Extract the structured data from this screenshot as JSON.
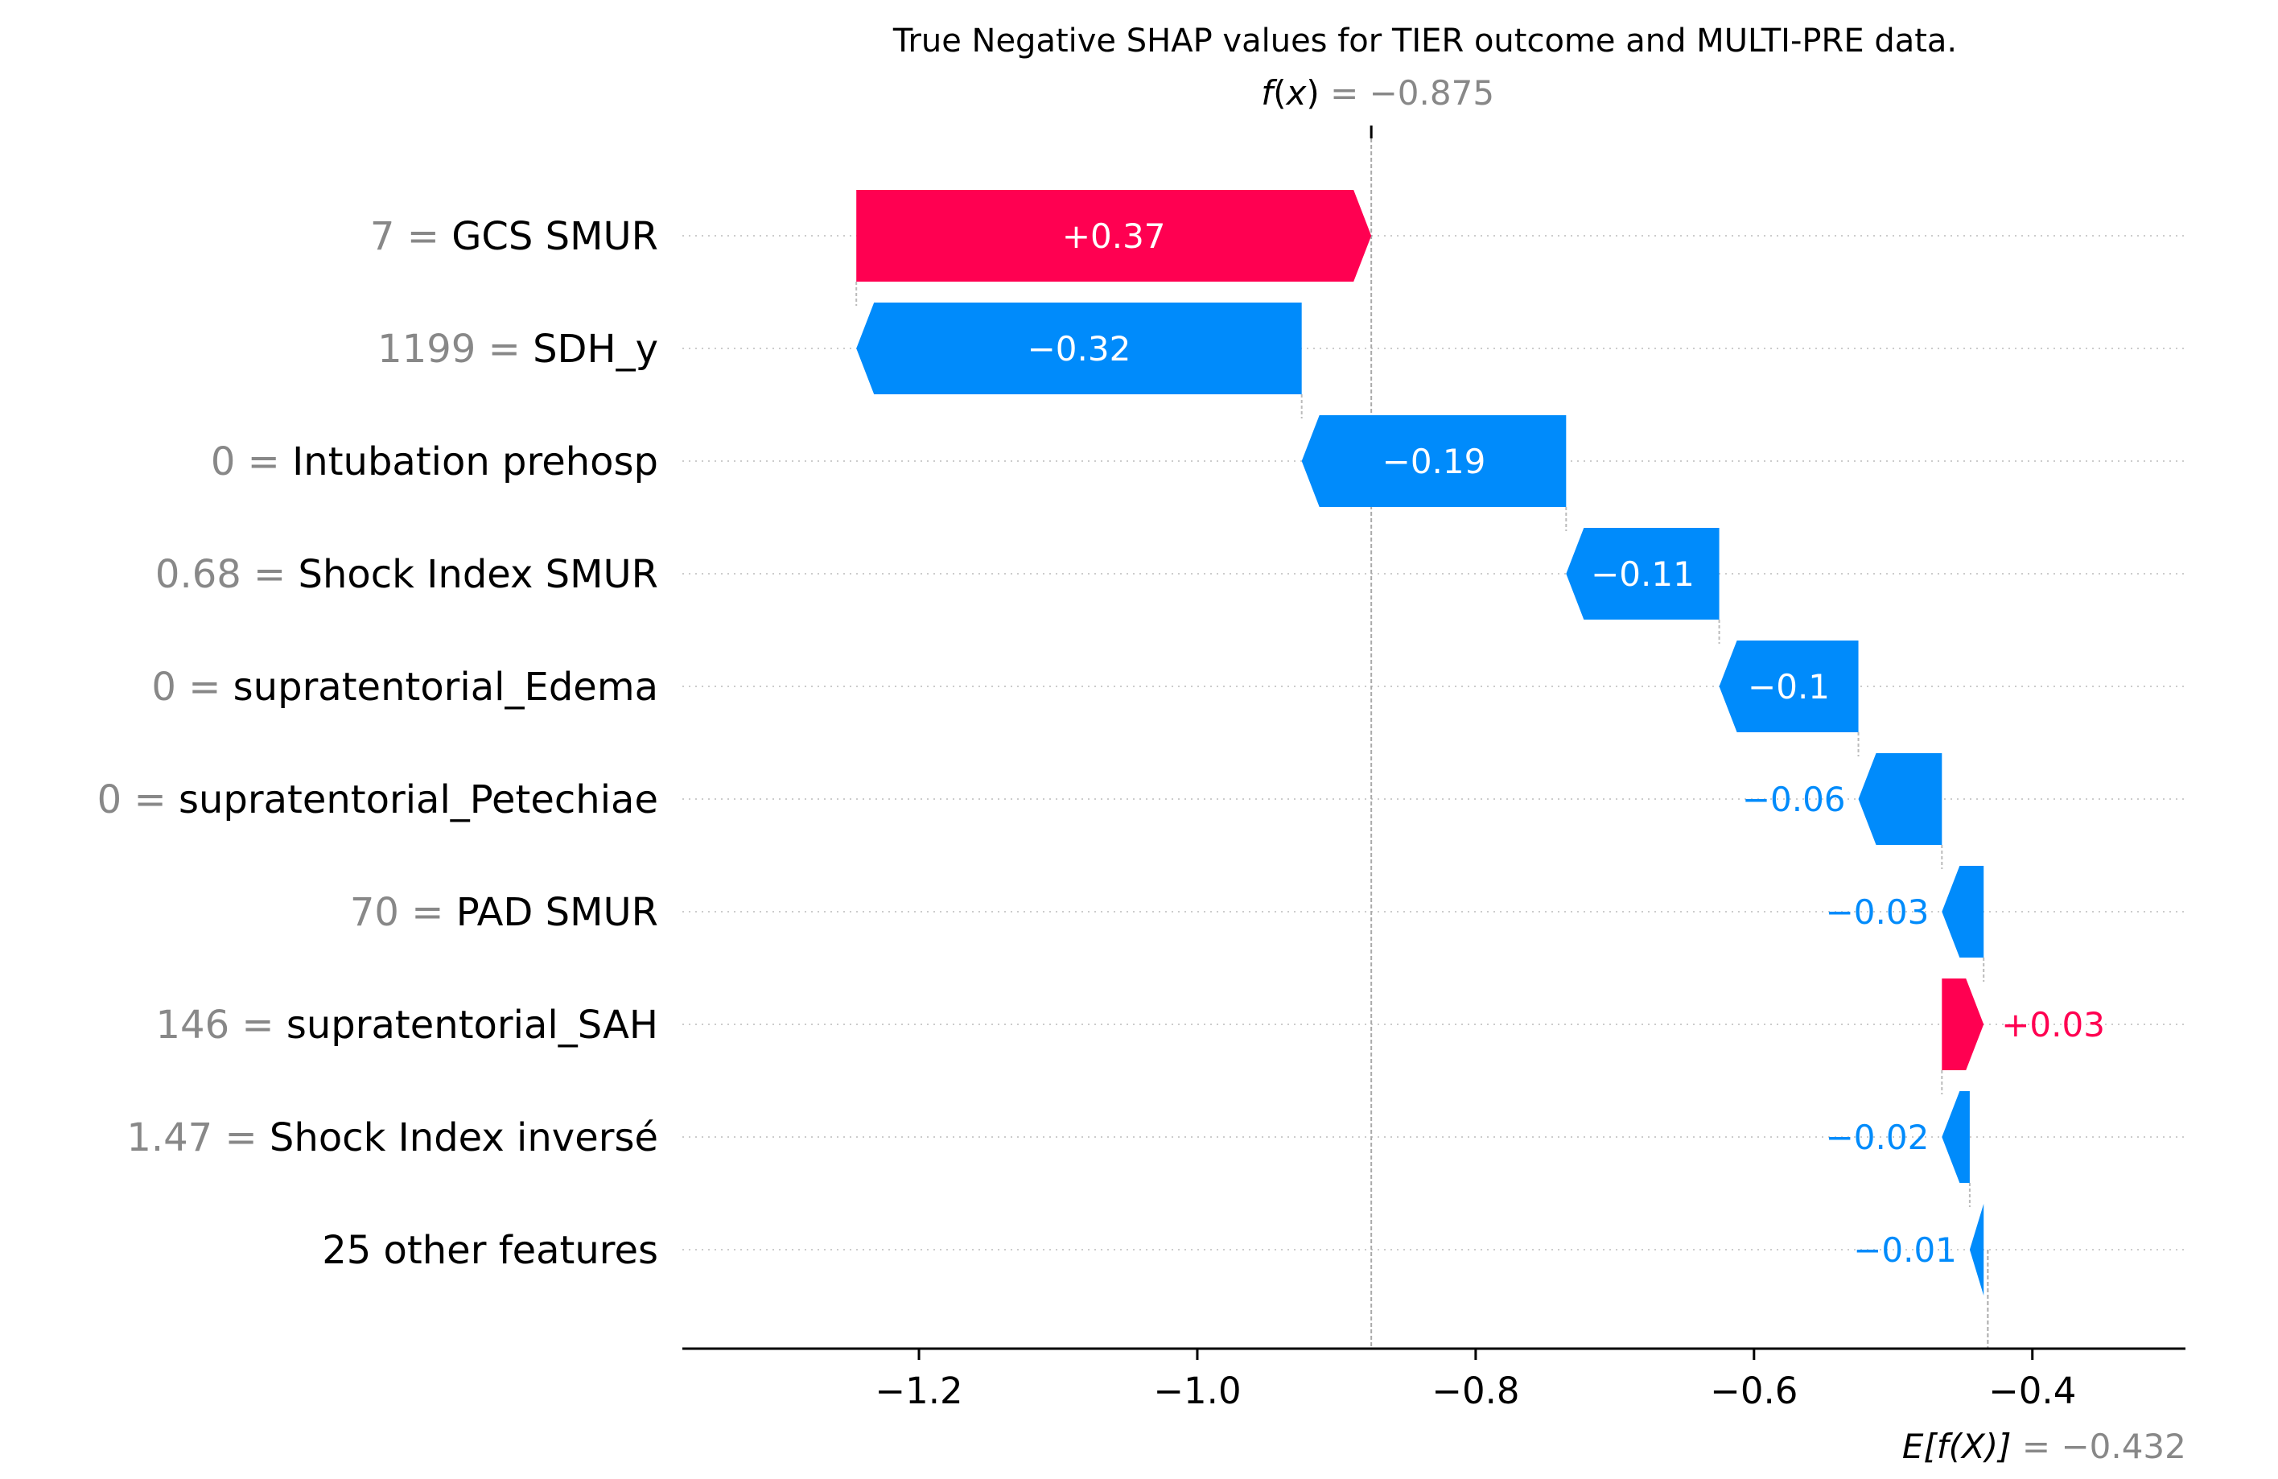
{
  "chart_data": {
    "type": "waterfall",
    "title": "True Negative SHAP values for TIER outcome and MULTI-PRE data.",
    "fx": {
      "label_fn": "f",
      "label_arg": "x",
      "value_text": " = −0.875",
      "value": -0.875
    },
    "base": {
      "label_text": "E[f(X)]",
      "value_text": " = −0.432",
      "value": -0.432
    },
    "xlim": [
      -1.37,
      -0.29
    ],
    "xticks": [
      -1.2,
      -1.0,
      -0.8,
      -0.6,
      -0.4
    ],
    "xtick_labels": [
      "−1.2",
      "−1.0",
      "−0.8",
      "−0.6",
      "−0.4"
    ],
    "grid": "horizontal dotted",
    "positive_color": "#ff0051",
    "negative_color": "#008bfb",
    "features": [
      {
        "value": "7",
        "name": "GCS SMUR ",
        "shap": 0.37,
        "label": "+0.37"
      },
      {
        "value": "1199",
        "name": "SDH_y",
        "shap": -0.32,
        "label": "−0.32"
      },
      {
        "value": "0",
        "name": "Intubation prehosp",
        "shap": -0.19,
        "label": "−0.19"
      },
      {
        "value": "0.68",
        "name": "Shock Index SMUR",
        "shap": -0.11,
        "label": "−0.11"
      },
      {
        "value": "0",
        "name": "supratentorial_Edema",
        "shap": -0.1,
        "label": "−0.1"
      },
      {
        "value": "0",
        "name": "supratentorial_Petechiae",
        "shap": -0.06,
        "label": "−0.06"
      },
      {
        "value": "70",
        "name": "PAD  SMUR ",
        "shap": -0.03,
        "label": "−0.03"
      },
      {
        "value": "146",
        "name": "supratentorial_SAH",
        "shap": 0.03,
        "label": "+0.03"
      },
      {
        "value": "1.47",
        "name": "Shock Index inversé",
        "shap": -0.02,
        "label": "−0.02"
      },
      {
        "value": "",
        "name": "25 other features",
        "shap": -0.01,
        "label": "−0.01"
      }
    ]
  }
}
